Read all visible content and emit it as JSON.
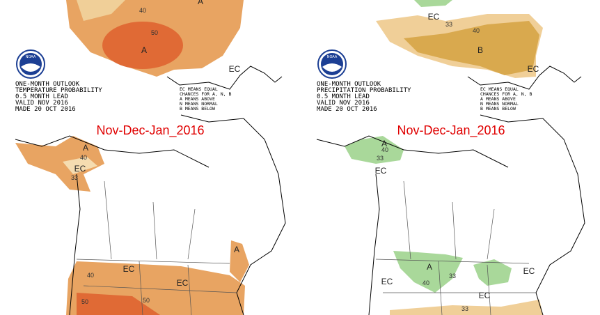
{
  "panels": [
    {
      "logo_text": "NOAA",
      "header": [
        "ONE-MONTH OUTLOOK",
        "TEMPERATURE PROBABILITY",
        "0.5 MONTH LEAD",
        "VALID NOV 2016",
        "MADE 20 OCT 2016"
      ],
      "legend": [
        "EC MEANS EQUAL",
        "CHANCES FOR A, N, B",
        "A MEANS ABOVE",
        "N MEANS NORMAL",
        "B MEANS BELOW"
      ],
      "caption": "Nov-Dec-Jan_2016",
      "labels": [
        "A",
        "40",
        "50",
        "A",
        "EC",
        "A",
        "40",
        "EC",
        "33",
        "A",
        "EC",
        "EC",
        "40",
        "50",
        "50"
      ]
    },
    {
      "logo_text": "NOAA",
      "header": [
        "ONE-MONTH OUTLOOK",
        "PRECIPITATION PROBABILITY",
        "0.5 MONTH LEAD",
        "VALID NOV 2016",
        "MADE 20 OCT 2016"
      ],
      "legend": [
        "EC MEANS EQUAL",
        "CHANCES FOR A, N, B",
        "A MEANS ABOVE",
        "N MEANS NORMAL",
        "B MEANS BELOW"
      ],
      "caption": "Nov-Dec-Jan_2016",
      "labels": [
        "EC",
        "33",
        "40",
        "B",
        "EC",
        "A",
        "40",
        "33",
        "EC",
        "A",
        "40",
        "33",
        "EC",
        "EC",
        "EC",
        "33"
      ]
    }
  ]
}
